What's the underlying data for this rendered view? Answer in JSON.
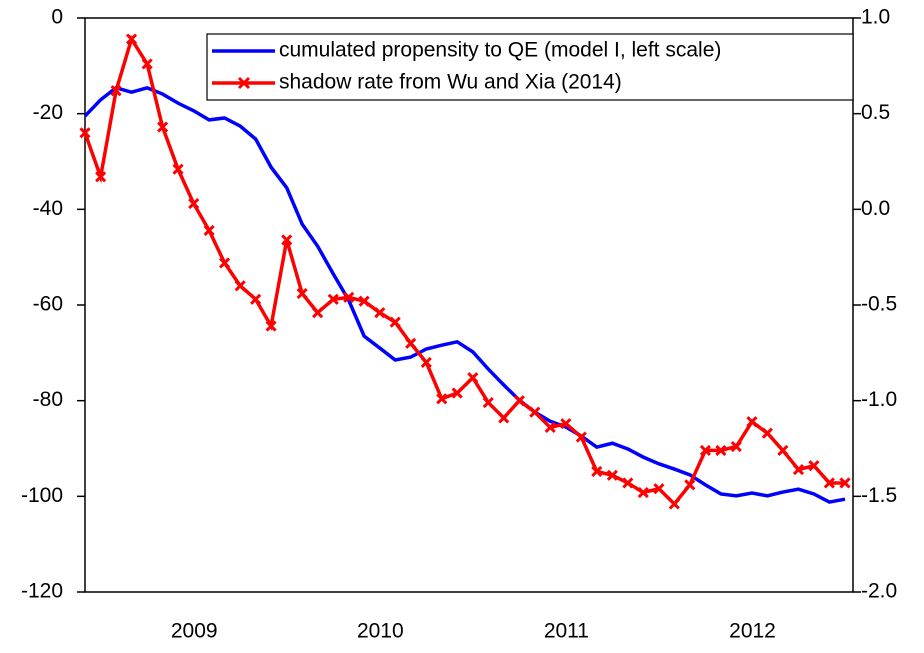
{
  "chart_data": {
    "type": "line",
    "x": [
      2008.833,
      2008.917,
      2009.0,
      2009.083,
      2009.167,
      2009.25,
      2009.333,
      2009.417,
      2009.5,
      2009.583,
      2009.667,
      2009.75,
      2009.833,
      2009.917,
      2010.0,
      2010.083,
      2010.167,
      2010.25,
      2010.333,
      2010.417,
      2010.5,
      2010.583,
      2010.667,
      2010.75,
      2010.833,
      2010.917,
      2011.0,
      2011.083,
      2011.167,
      2011.25,
      2011.333,
      2011.417,
      2011.5,
      2011.583,
      2011.667,
      2011.75,
      2011.833,
      2011.917,
      2012.0,
      2012.083,
      2012.167,
      2012.25,
      2012.333,
      2012.417,
      2012.5,
      2012.583,
      2012.667,
      2012.75,
      2012.833,
      2012.917
    ],
    "series": [
      {
        "name": "cumulated propensity to QE (model I, left scale)",
        "color": "#0000ff",
        "axis": "y",
        "values": [
          -20.5,
          -17.1,
          -14.6,
          -15.5,
          -14.6,
          -15.9,
          -17.8,
          -19.4,
          -21.3,
          -20.9,
          -22.6,
          -25.3,
          -31.2,
          -35.5,
          -43.1,
          -47.7,
          -53.5,
          -59.0,
          -66.5,
          -69.0,
          -71.5,
          -70.9,
          -69.2,
          -68.4,
          -67.7,
          -69.8,
          -73.4,
          -76.7,
          -79.9,
          -82.4,
          -84.3,
          -85.5,
          -87.4,
          -89.7,
          -88.9,
          -90.1,
          -91.8,
          -93.2,
          -94.3,
          -95.5,
          -97.6,
          -99.5,
          -99.9,
          -99.3,
          -99.9,
          -99.1,
          -98.5,
          -99.5,
          -101.2,
          -100.6
        ]
      },
      {
        "name": "shadow rate from Wu and Xia (2014)",
        "color": "#ff0000",
        "axis": "y2",
        "marker": "x",
        "values": [
          0.4,
          0.17,
          0.62,
          0.89,
          0.76,
          0.43,
          0.21,
          0.03,
          -0.11,
          -0.28,
          -0.4,
          -0.47,
          -0.61,
          -0.16,
          -0.44,
          -0.54,
          -0.47,
          -0.46,
          -0.48,
          -0.54,
          -0.59,
          -0.7,
          -0.8,
          -0.99,
          -0.96,
          -0.88,
          -1.01,
          -1.09,
          -1.0,
          -1.06,
          -1.14,
          -1.12,
          -1.19,
          -1.37,
          -1.39,
          -1.43,
          -1.48,
          -1.46,
          -1.54,
          -1.44,
          -1.26,
          -1.26,
          -1.24,
          -1.11,
          -1.17,
          -1.26,
          -1.36,
          -1.34,
          -1.43,
          -1.43
        ]
      }
    ],
    "xlim": [
      2008.833,
      2012.96
    ],
    "xticks": [
      {
        "value": 2009.42,
        "label": "2009"
      },
      {
        "value": 2010.42,
        "label": "2010"
      },
      {
        "value": 2011.42,
        "label": "2011"
      },
      {
        "value": 2012.42,
        "label": "2012"
      }
    ],
    "ylim": [
      -120,
      0
    ],
    "yticks": [
      0,
      -20,
      -40,
      -60,
      -80,
      -100,
      -120
    ],
    "y2lim": [
      -2,
      1
    ],
    "y2ticks": [
      {
        "value": 1,
        "label": "1.0"
      },
      0.5,
      {
        "value": 0,
        "label": "0.0"
      },
      -0.5,
      {
        "value": -1,
        "label": "-1.0"
      },
      -1.5,
      {
        "value": -2,
        "label": "-2.0"
      }
    ],
    "legend": "upper right"
  }
}
